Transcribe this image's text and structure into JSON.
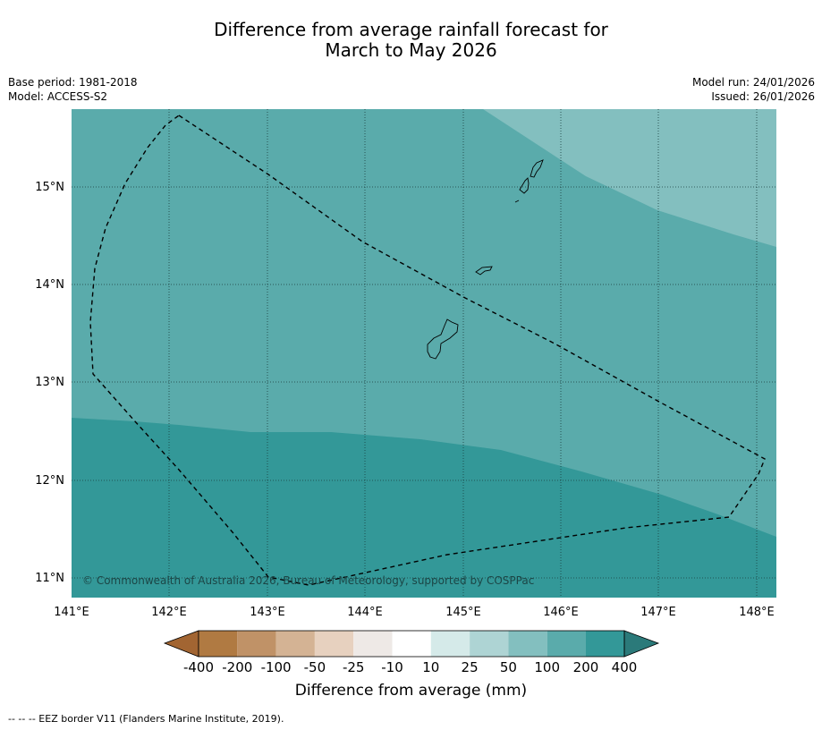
{
  "title": {
    "line1": "Difference from average rainfall forecast for",
    "line2": "March to May 2026"
  },
  "meta": {
    "base_period": "Base period: 1981-2018",
    "model": "Model: ACCESS-S2",
    "model_run": "Model run: 24/01/2026",
    "issued": "Issued: 26/01/2026"
  },
  "map": {
    "lon_labels": [
      "141°E",
      "142°E",
      "143°E",
      "144°E",
      "145°E",
      "146°E",
      "147°E",
      "148°E"
    ],
    "lat_labels": [
      "15°N",
      "14°N",
      "13°N",
      "12°N",
      "11°N"
    ],
    "copyright": "© Commonwealth of Australia 2026, Bureau of Meteorology, supported by COSPPac",
    "zone_colors": {
      "50_100": "#83bfbf",
      "100_200": "#5aabab",
      "200_400": "#339898"
    }
  },
  "colorbar": {
    "title": "Difference from average (mm)",
    "ticks": [
      "-400",
      "-200",
      "-100",
      "-50",
      "-25",
      "-10",
      "10",
      "25",
      "50",
      "100",
      "200",
      "400"
    ],
    "colors": [
      "#a26532",
      "#b07a42",
      "#c09267",
      "#d4b394",
      "#e7d1bf",
      "#eee9e6",
      "#ffffff",
      "#d5eae9",
      "#aed4d4",
      "#83bfbf",
      "#5aabab",
      "#339898",
      "#2b7a7a"
    ]
  },
  "footnote": "--  --  -- EEZ border V11 (Flanders Marine Institute, 2019)."
}
